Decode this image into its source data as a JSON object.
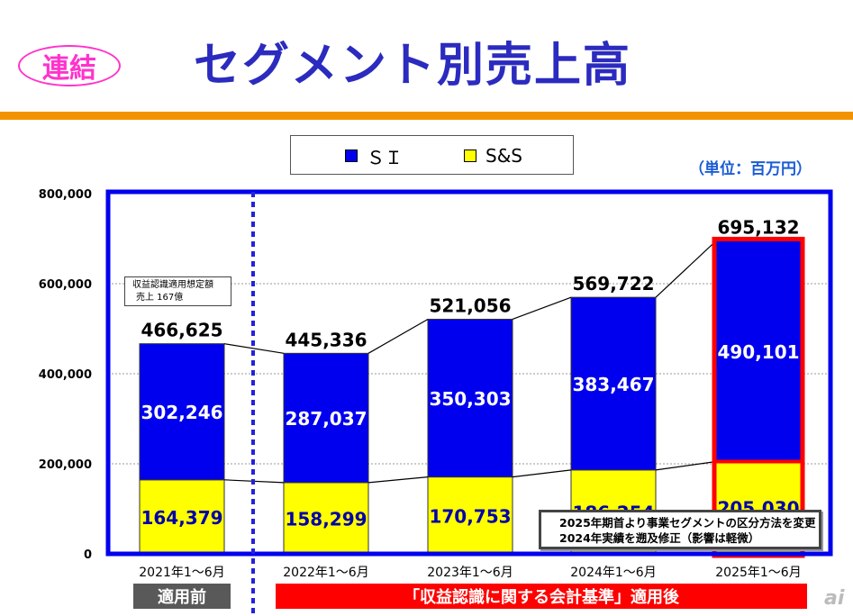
{
  "header": {
    "badge": "連結",
    "title": "セグメント別売上高"
  },
  "unit_label": "（単位：百万円）",
  "note_box": {
    "line1": "収益認識適用想定額",
    "line2": "売上 167億"
  },
  "change_note": {
    "line1": "2025年期首より事業セグメントの区分方法を変更",
    "line2": "2024年実績を遡及修正（影響は軽微）"
  },
  "period_labels": {
    "before": "適用前",
    "after": "「収益認識に関する会計基準」適用後"
  },
  "watermark": "ai",
  "colors": {
    "si": "#0000ee",
    "ss": "#ffff00",
    "frame": "#0000ee",
    "highlight": "#ff0000",
    "accent_rule": "#f39200",
    "title": "#2b2bbf"
  },
  "chart_data": {
    "type": "bar",
    "stacked": true,
    "categories": [
      "2021年1～6月",
      "2022年1～6月",
      "2023年1～6月",
      "2024年1～6月",
      "2025年1～6月"
    ],
    "series": [
      {
        "name": "S&S",
        "values": [
          164379,
          158299,
          170753,
          186254,
          205030
        ],
        "labels": [
          "164,379",
          "158,299",
          "170,753",
          "186,254",
          "205,030"
        ]
      },
      {
        "name": "ＳＩ",
        "values": [
          302246,
          287037,
          350303,
          383467,
          490101
        ],
        "labels": [
          "302,246",
          "287,037",
          "350,303",
          "383,467",
          "490,101"
        ]
      }
    ],
    "totals": [
      466625,
      445336,
      521056,
      569722,
      695132
    ],
    "total_labels": [
      "466,625",
      "445,336",
      "521,056",
      "569,722",
      "695,132"
    ],
    "legend": [
      "ＳＩ",
      "S&S"
    ],
    "y_ticks": [
      "0",
      "200,000",
      "400,000",
      "600,000",
      "800,000"
    ],
    "ylim": [
      0,
      800000
    ],
    "grid": true,
    "highlighted_category": "2025年1～6月"
  }
}
